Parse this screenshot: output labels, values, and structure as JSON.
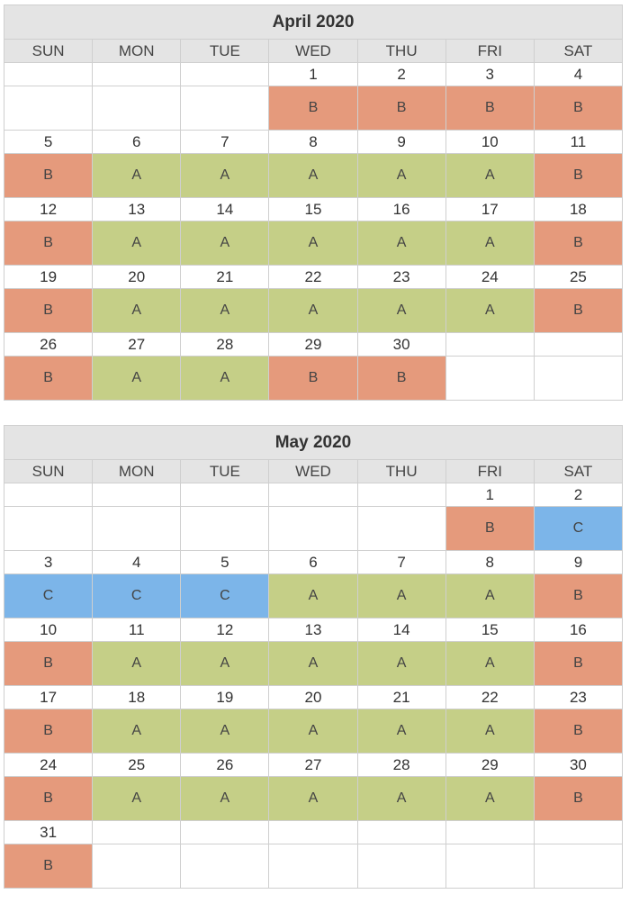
{
  "colors": {
    "A": "#c5cf87",
    "B": "#e59a7c",
    "C": "#7cb5e9",
    "header_bg": "#e4e4e4"
  },
  "weekdays": [
    "SUN",
    "MON",
    "TUE",
    "WED",
    "THU",
    "FRI",
    "SAT"
  ],
  "calendars": [
    {
      "title": "April 2020",
      "weeks": [
        {
          "days": [
            "",
            "",
            "",
            "1",
            "2",
            "3",
            "4"
          ],
          "codes": [
            "",
            "",
            "",
            "B",
            "B",
            "B",
            "B"
          ]
        },
        {
          "days": [
            "5",
            "6",
            "7",
            "8",
            "9",
            "10",
            "11"
          ],
          "codes": [
            "B",
            "A",
            "A",
            "A",
            "A",
            "A",
            "B"
          ]
        },
        {
          "days": [
            "12",
            "13",
            "14",
            "15",
            "16",
            "17",
            "18"
          ],
          "codes": [
            "B",
            "A",
            "A",
            "A",
            "A",
            "A",
            "B"
          ]
        },
        {
          "days": [
            "19",
            "20",
            "21",
            "22",
            "23",
            "24",
            "25"
          ],
          "codes": [
            "B",
            "A",
            "A",
            "A",
            "A",
            "A",
            "B"
          ]
        },
        {
          "days": [
            "26",
            "27",
            "28",
            "29",
            "30",
            "",
            ""
          ],
          "codes": [
            "B",
            "A",
            "A",
            "B",
            "B",
            "",
            ""
          ]
        }
      ]
    },
    {
      "title": "May 2020",
      "weeks": [
        {
          "days": [
            "",
            "",
            "",
            "",
            "",
            "1",
            "2"
          ],
          "codes": [
            "",
            "",
            "",
            "",
            "",
            "B",
            "C"
          ]
        },
        {
          "days": [
            "3",
            "4",
            "5",
            "6",
            "7",
            "8",
            "9"
          ],
          "codes": [
            "C",
            "C",
            "C",
            "A",
            "A",
            "A",
            "B"
          ]
        },
        {
          "days": [
            "10",
            "11",
            "12",
            "13",
            "14",
            "15",
            "16"
          ],
          "codes": [
            "B",
            "A",
            "A",
            "A",
            "A",
            "A",
            "B"
          ]
        },
        {
          "days": [
            "17",
            "18",
            "19",
            "20",
            "21",
            "22",
            "23"
          ],
          "codes": [
            "B",
            "A",
            "A",
            "A",
            "A",
            "A",
            "B"
          ]
        },
        {
          "days": [
            "24",
            "25",
            "26",
            "27",
            "28",
            "29",
            "30"
          ],
          "codes": [
            "B",
            "A",
            "A",
            "A",
            "A",
            "A",
            "B"
          ]
        },
        {
          "days": [
            "31",
            "",
            "",
            "",
            "",
            "",
            ""
          ],
          "codes": [
            "B",
            "",
            "",
            "",
            "",
            "",
            ""
          ]
        }
      ]
    }
  ]
}
